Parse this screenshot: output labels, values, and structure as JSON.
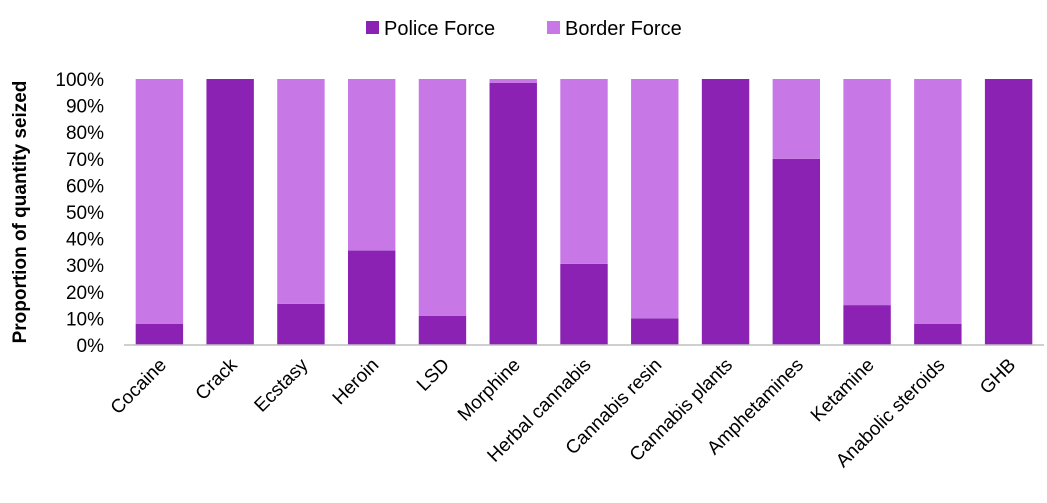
{
  "chart_data": {
    "type": "bar",
    "stacked": true,
    "title": "",
    "xlabel": "",
    "ylabel": "Proportion of quantity seized",
    "ylim": [
      0,
      100
    ],
    "yticks": [
      "0%",
      "10%",
      "20%",
      "30%",
      "40%",
      "50%",
      "60%",
      "70%",
      "80%",
      "90%",
      "100%"
    ],
    "legend_position": "top-center",
    "grid": false,
    "categories": [
      "Cocaine",
      "Crack",
      "Ecstasy",
      "Heroin",
      "LSD",
      "Morphine",
      "Herbal cannabis",
      "Cannabis resin",
      "Cannabis plants",
      "Amphetamines",
      "Ketamine",
      "Anabolic steroids",
      "GHB"
    ],
    "series": [
      {
        "name": "Police Force",
        "color": "#8b22b4",
        "values": [
          8,
          100,
          15.5,
          35.5,
          11,
          98.5,
          30.5,
          10,
          100,
          70,
          15,
          8,
          100
        ]
      },
      {
        "name": "Border Force",
        "color": "#c878e6",
        "values": [
          92,
          0,
          84.5,
          64.5,
          89,
          1.5,
          69.5,
          90,
          0,
          30,
          85,
          92,
          0
        ]
      }
    ]
  }
}
